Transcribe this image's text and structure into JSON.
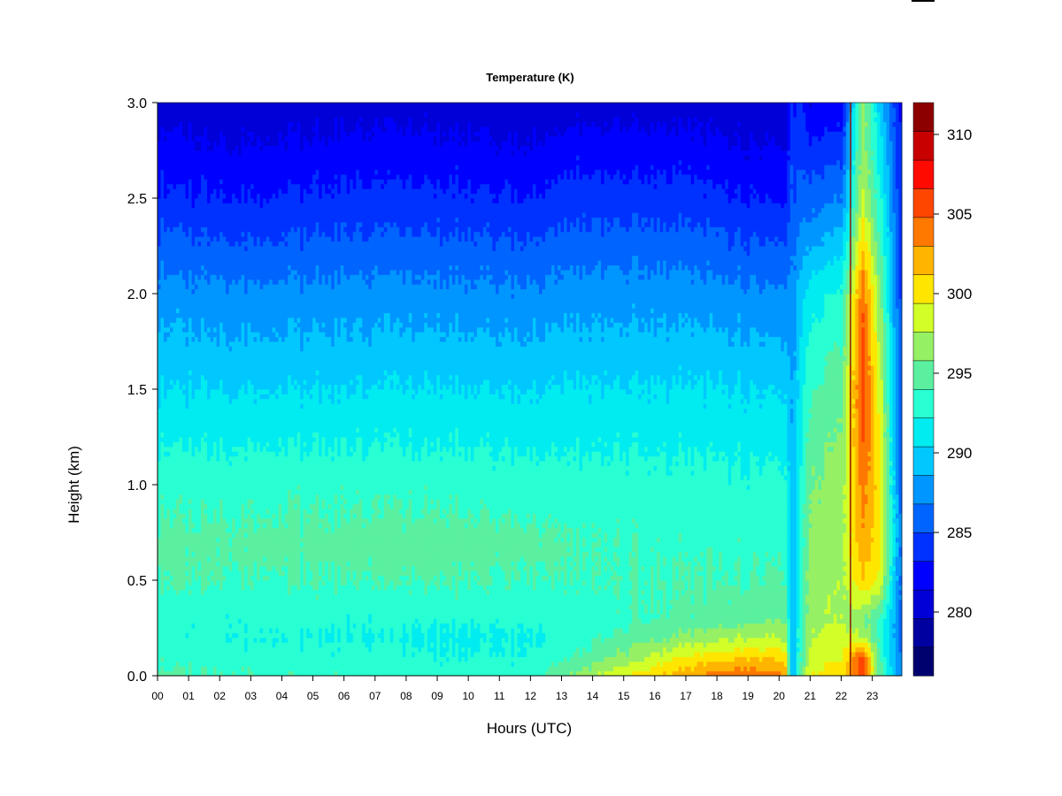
{
  "chart_data": {
    "type": "heatmap",
    "title": "Temperature (K)",
    "xlabel": "Hours (UTC)",
    "ylabel": "Height (km)",
    "x_ticks": [
      "00",
      "01",
      "02",
      "03",
      "04",
      "05",
      "06",
      "07",
      "08",
      "09",
      "10",
      "11",
      "12",
      "13",
      "14",
      "15",
      "16",
      "17",
      "18",
      "19",
      "20",
      "21",
      "22",
      "23"
    ],
    "xlim": [
      0,
      23.95
    ],
    "y_ticks": [
      "0.0",
      "0.5",
      "1.0",
      "1.5",
      "2.0",
      "2.5",
      "3.0"
    ],
    "ylim": [
      0,
      3.0
    ],
    "colorbar": {
      "range": [
        276,
        312
      ],
      "step": 2,
      "tick_labels": [
        "280",
        "285",
        "290",
        "295",
        "300",
        "305",
        "310"
      ],
      "tick_values": [
        280,
        285,
        290,
        295,
        300,
        305,
        310
      ],
      "colors": [
        "#00006e",
        "#0000a0",
        "#0000d7",
        "#0000ff",
        "#0032ff",
        "#0064ff",
        "#0096ff",
        "#00c8ff",
        "#00ecf0",
        "#28ffd2",
        "#5af0a0",
        "#96f064",
        "#d2ff28",
        "#ffe600",
        "#ffb400",
        "#ff7800",
        "#ff4600",
        "#ff0a00",
        "#c80000",
        "#8c0000"
      ]
    },
    "profile_heights_km": [
      0.0,
      0.1,
      0.2,
      0.3,
      0.5,
      0.7,
      1.0,
      1.5,
      2.0,
      2.5,
      3.0
    ],
    "profiles": [
      {
        "hour": 0,
        "temps_k": [
          296.5,
          295.2,
          294.8,
          294.6,
          296.2,
          296.6,
          295.3,
          292.0,
          289.0,
          284.5,
          281.0
        ]
      },
      {
        "hour": 3,
        "temps_k": [
          296.0,
          294.8,
          294.2,
          294.4,
          296.0,
          296.6,
          295.3,
          292.0,
          288.5,
          284.0,
          280.5
        ]
      },
      {
        "hour": 6,
        "temps_k": [
          295.5,
          294.6,
          294.0,
          294.4,
          296.0,
          296.8,
          295.3,
          292.0,
          288.8,
          284.5,
          281.0
        ]
      },
      {
        "hour": 9,
        "temps_k": [
          295.0,
          294.3,
          293.8,
          294.4,
          296.2,
          297.0,
          295.4,
          292.2,
          288.8,
          284.6,
          281.0
        ]
      },
      {
        "hour": 12,
        "temps_k": [
          295.2,
          294.3,
          293.8,
          294.6,
          296.0,
          296.7,
          295.0,
          292.0,
          288.5,
          284.2,
          280.5
        ]
      },
      {
        "hour": 13.5,
        "temps_k": [
          298.5,
          296.2,
          295.0,
          294.8,
          295.8,
          296.0,
          294.8,
          292.2,
          289.0,
          285.0,
          281.0
        ]
      },
      {
        "hour": 15,
        "temps_k": [
          302.0,
          298.6,
          296.6,
          295.5,
          296.0,
          295.8,
          294.8,
          292.2,
          289.0,
          285.0,
          281.0
        ]
      },
      {
        "hour": 17,
        "temps_k": [
          305.5,
          302.0,
          298.5,
          296.5,
          296.0,
          295.6,
          294.8,
          292.2,
          289.0,
          285.0,
          281.0
        ]
      },
      {
        "hour": 19,
        "temps_k": [
          307.5,
          304.0,
          300.0,
          297.2,
          296.0,
          295.4,
          294.6,
          292.0,
          288.5,
          284.0,
          280.5
        ]
      },
      {
        "hour": 20.2,
        "temps_k": [
          306.5,
          303.5,
          300.2,
          298.0,
          296.4,
          295.6,
          294.8,
          292.0,
          288.5,
          284.0,
          280.5
        ]
      },
      {
        "hour": 20.4,
        "temps_k": [
          290.0,
          290.0,
          290.0,
          290.0,
          290.0,
          290.0,
          290.0,
          289.5,
          288.5,
          286.0,
          284.5
        ]
      },
      {
        "hour": 21,
        "temps_k": [
          302.0,
          301.0,
          300.0,
          299.5,
          299.2,
          298.8,
          298.0,
          296.0,
          293.0,
          287.0,
          282.5
        ]
      },
      {
        "hour": 22,
        "temps_k": [
          303.5,
          302.0,
          301.0,
          300.0,
          299.8,
          299.6,
          299.0,
          297.5,
          294.5,
          288.0,
          282.5
        ]
      },
      {
        "hour": 22.7,
        "temps_k": [
          309.5,
          309.0,
          300.0,
          298.0,
          303.5,
          305.5,
          307.0,
          309.0,
          307.5,
          300.0,
          299.0
        ]
      },
      {
        "hour": 23.2,
        "temps_k": [
          297.0,
          296.5,
          296.0,
          296.0,
          302.0,
          303.0,
          303.0,
          302.0,
          299.0,
          295.0,
          292.0
        ]
      },
      {
        "hour": 23.95,
        "temps_k": [
          288.0,
          287.5,
          287.0,
          287.0,
          287.0,
          287.0,
          286.5,
          286.0,
          285.0,
          284.0,
          283.0
        ]
      }
    ],
    "legend": "right (colorbar)",
    "grid": false
  }
}
